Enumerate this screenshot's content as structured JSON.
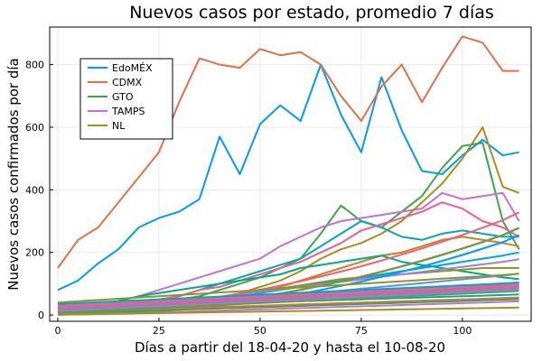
{
  "chart_data": {
    "type": "line",
    "title": "Nuevos casos por estado, promedio 7 días",
    "xlabel": "Días a partir del 18-04-20 y hasta el 10-08-20",
    "ylabel": "Nuevos casos confirmados por día",
    "xlim": [
      -2,
      117
    ],
    "ylim": [
      -20,
      920
    ],
    "xticks": [
      0,
      25,
      50,
      75,
      100
    ],
    "yticks": [
      0,
      200,
      400,
      600,
      800
    ],
    "grid": true,
    "legend_position": "top-left",
    "x": [
      0,
      5,
      10,
      15,
      20,
      25,
      30,
      35,
      40,
      45,
      50,
      55,
      60,
      65,
      70,
      75,
      80,
      85,
      90,
      95,
      100,
      105,
      110,
      114
    ],
    "series": [
      {
        "name": "EdoMÉX",
        "color": "#009AFA",
        "values": [
          80,
          110,
          165,
          210,
          280,
          310,
          330,
          370,
          570,
          450,
          610,
          670,
          620,
          800,
          640,
          520,
          760,
          590,
          460,
          450,
          510,
          560,
          510,
          520
        ]
      },
      {
        "name": "CDMX",
        "color": "#E26F46",
        "values": [
          150,
          240,
          280,
          360,
          440,
          520,
          680,
          820,
          800,
          790,
          850,
          830,
          840,
          800,
          700,
          620,
          730,
          800,
          680,
          790,
          890,
          870,
          780,
          780
        ]
      },
      {
        "name": "GTO",
        "color": "#3EA44E",
        "values": [
          10,
          10,
          15,
          20,
          25,
          35,
          50,
          60,
          80,
          100,
          120,
          150,
          180,
          260,
          350,
          300,
          280,
          330,
          380,
          470,
          540,
          550,
          300,
          210
        ]
      },
      {
        "name": "TAMPS",
        "color": "#C371D2",
        "values": [
          20,
          25,
          30,
          45,
          60,
          80,
          100,
          120,
          140,
          160,
          180,
          220,
          250,
          280,
          300,
          310,
          320,
          330,
          340,
          390,
          370,
          380,
          390,
          300
        ]
      },
      {
        "name": "NL",
        "color": "#AC8D18",
        "values": [
          5,
          5,
          10,
          15,
          20,
          25,
          35,
          45,
          55,
          70,
          90,
          110,
          140,
          180,
          210,
          230,
          260,
          300,
          360,
          420,
          500,
          600,
          410,
          390
        ]
      },
      {
        "color": "#00A9AD",
        "values": [
          5,
          8,
          12,
          18,
          25,
          40,
          60,
          80,
          100,
          120,
          140,
          160,
          180,
          220,
          260,
          300,
          280,
          250,
          240,
          260,
          270,
          260,
          250,
          250
        ]
      },
      {
        "color": "#ED5D92",
        "values": [
          10,
          15,
          20,
          30,
          40,
          50,
          60,
          80,
          90,
          110,
          130,
          150,
          170,
          200,
          230,
          270,
          290,
          310,
          330,
          360,
          340,
          300,
          280,
          250
        ]
      },
      {
        "color": "#C68225",
        "values": [
          2,
          4,
          6,
          10,
          15,
          20,
          25,
          35,
          45,
          55,
          70,
          90,
          110,
          130,
          150,
          170,
          190,
          200,
          220,
          240,
          250,
          240,
          230,
          220
        ]
      },
      {
        "color": "#00A98D",
        "values": [
          15,
          20,
          30,
          45,
          60,
          70,
          80,
          90,
          100,
          110,
          120,
          130,
          150,
          160,
          170,
          180,
          190,
          170,
          160,
          150,
          140,
          130,
          120,
          115
        ]
      },
      {
        "color": "#8E971E",
        "values": [
          5,
          8,
          12,
          18,
          24,
          30,
          38,
          46,
          55,
          65,
          75,
          85,
          95,
          105,
          115,
          120,
          125,
          130,
          135,
          140,
          145,
          150,
          150,
          150
        ]
      },
      {
        "color": "#00A8CB",
        "values": [
          3,
          5,
          8,
          12,
          18,
          25,
          32,
          40,
          50,
          60,
          70,
          80,
          90,
          100,
          110,
          120,
          130,
          140,
          150,
          160,
          170,
          180,
          190,
          200
        ]
      },
      {
        "color": "#9B7FE8",
        "values": [
          8,
          12,
          16,
          22,
          28,
          35,
          42,
          50,
          58,
          66,
          74,
          82,
          90,
          98,
          106,
          114,
          122,
          130,
          138,
          146,
          154,
          162,
          170,
          178
        ]
      },
      {
        "color": "#608CF6",
        "values": [
          4,
          6,
          9,
          13,
          18,
          24,
          30,
          36,
          42,
          48,
          54,
          60,
          66,
          72,
          78,
          84,
          90,
          96,
          102,
          108,
          114,
          120,
          126,
          132
        ]
      },
      {
        "color": "#F05F73",
        "values": [
          6,
          9,
          13,
          18,
          24,
          31,
          39,
          48,
          58,
          69,
          81,
          94,
          108,
          123,
          139,
          156,
          174,
          193,
          213,
          234,
          256,
          279,
          303,
          328
        ]
      },
      {
        "color": "#DD64B5",
        "values": [
          3,
          4,
          6,
          9,
          13,
          18,
          24,
          31,
          39,
          48,
          58,
          69,
          81,
          94,
          108,
          123,
          139,
          156,
          174,
          193,
          213,
          234,
          256,
          279
        ]
      },
      {
        "color": "#6B9E32",
        "values": [
          2,
          3,
          5,
          8,
          12,
          17,
          23,
          30,
          38,
          47,
          57,
          68,
          80,
          93,
          107,
          122,
          138,
          155,
          173,
          192,
          212,
          233,
          255,
          278
        ]
      },
      {
        "color": "#009AFA",
        "values": [
          1,
          2,
          3,
          5,
          8,
          12,
          17,
          23,
          30,
          38,
          47,
          57,
          68,
          80,
          93,
          107,
          122,
          138,
          155,
          173,
          192,
          212,
          233,
          255
        ]
      },
      {
        "color": "#E26F46",
        "values": [
          10,
          12,
          14,
          16,
          18,
          20,
          22,
          24,
          26,
          28,
          30,
          32,
          34,
          36,
          38,
          40,
          42,
          44,
          46,
          48,
          50,
          52,
          54,
          56
        ]
      },
      {
        "color": "#3EA44E",
        "values": [
          5,
          7,
          9,
          11,
          13,
          15,
          17,
          19,
          21,
          23,
          25,
          27,
          29,
          31,
          33,
          35,
          37,
          39,
          41,
          43,
          45,
          47,
          49,
          51
        ]
      },
      {
        "color": "#C371D2",
        "values": [
          2,
          3,
          4,
          5,
          6,
          8,
          10,
          12,
          14,
          16,
          18,
          20,
          22,
          24,
          26,
          28,
          30,
          32,
          34,
          36,
          38,
          40,
          42,
          44
        ]
      },
      {
        "color": "#AC8D18",
        "values": [
          1,
          2,
          3,
          4,
          5,
          6,
          7,
          8,
          9,
          10,
          11,
          12,
          13,
          14,
          15,
          16,
          17,
          18,
          19,
          20,
          21,
          22,
          23,
          24
        ]
      },
      {
        "color": "#00A9AD",
        "values": [
          20,
          22,
          24,
          26,
          28,
          30,
          32,
          34,
          36,
          38,
          40,
          42,
          44,
          46,
          48,
          50,
          52,
          54,
          56,
          58,
          60,
          62,
          64,
          66
        ]
      },
      {
        "color": "#ED5D92",
        "values": [
          15,
          18,
          21,
          24,
          27,
          30,
          33,
          36,
          39,
          42,
          45,
          48,
          51,
          54,
          57,
          60,
          63,
          66,
          69,
          72,
          75,
          78,
          81,
          84
        ]
      },
      {
        "color": "#C68225",
        "values": [
          30,
          33,
          36,
          39,
          42,
          45,
          48,
          51,
          54,
          57,
          60,
          63,
          66,
          69,
          72,
          75,
          78,
          81,
          84,
          87,
          90,
          93,
          96,
          99
        ]
      },
      {
        "color": "#00A98D",
        "values": [
          25,
          28,
          31,
          34,
          37,
          40,
          43,
          46,
          49,
          52,
          55,
          58,
          61,
          64,
          67,
          70,
          73,
          76,
          79,
          82,
          85,
          88,
          91,
          94
        ]
      },
      {
        "color": "#8E971E",
        "values": [
          40,
          44,
          48,
          52,
          56,
          60,
          64,
          68,
          72,
          76,
          80,
          84,
          88,
          92,
          96,
          100,
          104,
          108,
          112,
          116,
          120,
          124,
          128,
          132
        ]
      },
      {
        "color": "#00A8CB",
        "values": [
          35,
          38,
          41,
          44,
          47,
          50,
          53,
          56,
          59,
          62,
          65,
          68,
          71,
          74,
          77,
          80,
          83,
          86,
          89,
          92,
          95,
          98,
          101,
          104
        ]
      },
      {
        "color": "#9B7FE8",
        "values": [
          12,
          15,
          18,
          21,
          24,
          27,
          30,
          33,
          36,
          39,
          42,
          45,
          48,
          51,
          54,
          57,
          60,
          63,
          66,
          69,
          72,
          75,
          78,
          81
        ]
      },
      {
        "color": "#608CF6",
        "values": [
          18,
          21,
          24,
          27,
          30,
          33,
          36,
          39,
          42,
          45,
          48,
          51,
          54,
          57,
          60,
          63,
          66,
          69,
          72,
          75,
          78,
          81,
          84,
          87
        ]
      },
      {
        "color": "#F05F73",
        "values": [
          22,
          25,
          28,
          31,
          34,
          37,
          40,
          43,
          46,
          49,
          52,
          55,
          58,
          61,
          64,
          67,
          70,
          73,
          76,
          79,
          82,
          85,
          88,
          91
        ]
      },
      {
        "color": "#DD64B5",
        "values": [
          28,
          31,
          34,
          37,
          40,
          43,
          46,
          49,
          52,
          55,
          58,
          61,
          64,
          67,
          70,
          73,
          76,
          79,
          82,
          85,
          88,
          91,
          94,
          97
        ]
      },
      {
        "color": "#6B9E32",
        "values": [
          8,
          11,
          14,
          17,
          20,
          23,
          26,
          29,
          32,
          35,
          38,
          41,
          44,
          47,
          50,
          53,
          56,
          59,
          62,
          65,
          68,
          71,
          74,
          77
        ]
      }
    ]
  }
}
